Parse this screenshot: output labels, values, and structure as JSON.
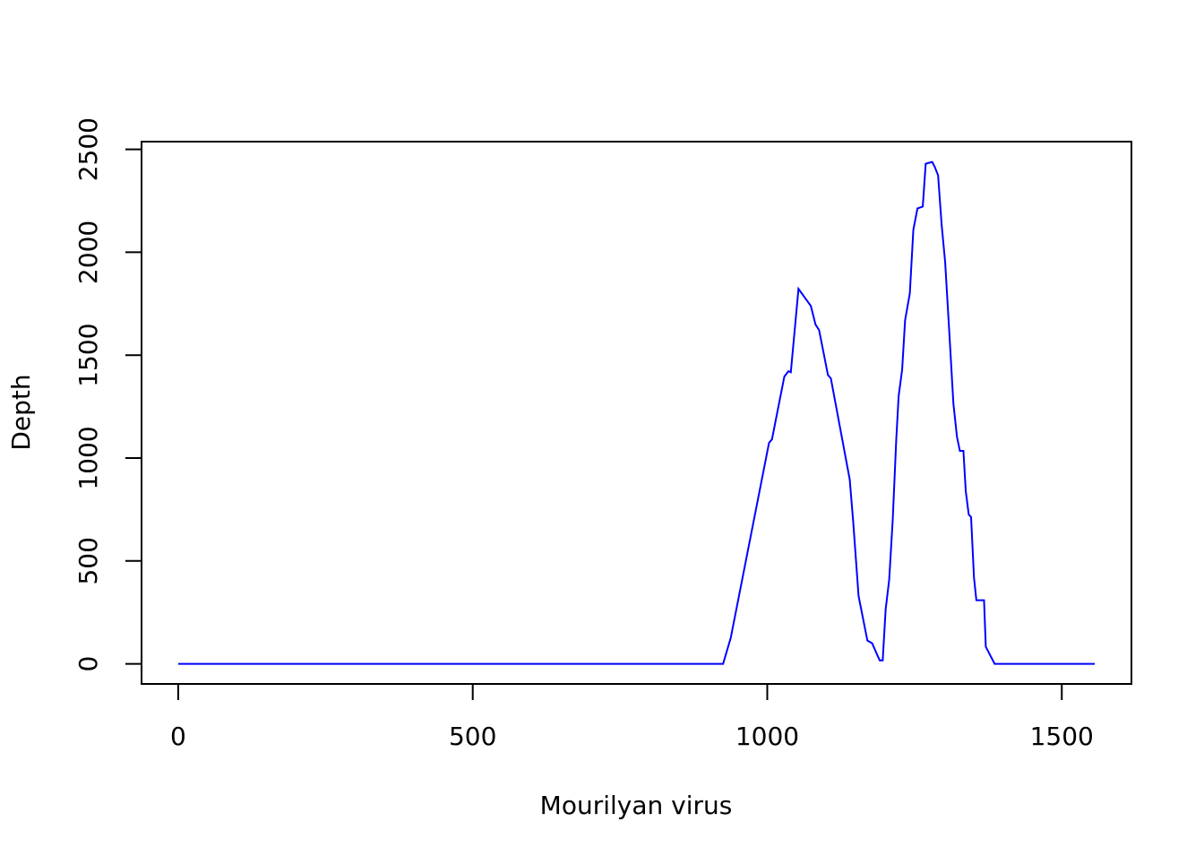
{
  "chart_data": {
    "type": "line",
    "xlabel": "Mourilyan virus",
    "ylabel": "Depth",
    "x": [
      0,
      925,
      938,
      1003,
      1008,
      1029,
      1036,
      1040,
      1053,
      1074,
      1082,
      1088,
      1103,
      1108,
      1140,
      1146,
      1155,
      1170,
      1178,
      1188,
      1191,
      1196,
      1201,
      1207,
      1213,
      1219,
      1223,
      1229,
      1234,
      1242,
      1248,
      1255,
      1264,
      1269,
      1280,
      1284,
      1290,
      1296,
      1302,
      1309,
      1316,
      1322,
      1327,
      1333,
      1337,
      1342,
      1346,
      1351,
      1355,
      1368,
      1371,
      1386,
      1556
    ],
    "series": [
      {
        "name": "Depth",
        "color": "#0000ff",
        "values": [
          0,
          0,
          126,
          1074,
          1091,
          1396,
          1422,
          1417,
          1822,
          1739,
          1648,
          1622,
          1404,
          1387,
          896,
          687,
          330,
          113,
          100,
          35,
          17,
          17,
          265,
          409,
          700,
          1091,
          1300,
          1430,
          1670,
          1800,
          2109,
          2213,
          2222,
          2430,
          2439,
          2417,
          2374,
          2135,
          1952,
          1613,
          1265,
          1104,
          1035,
          1035,
          839,
          726,
          713,
          417,
          309,
          309,
          83,
          0,
          0
        ]
      }
    ],
    "xlim": [
      -62.24,
      1618.24
    ],
    "ylim": [
      -97.6,
      2537.6
    ],
    "xticks": [
      0,
      500,
      1000,
      1500
    ],
    "yticks": [
      0,
      500,
      1000,
      1500,
      2000,
      2500
    ]
  }
}
